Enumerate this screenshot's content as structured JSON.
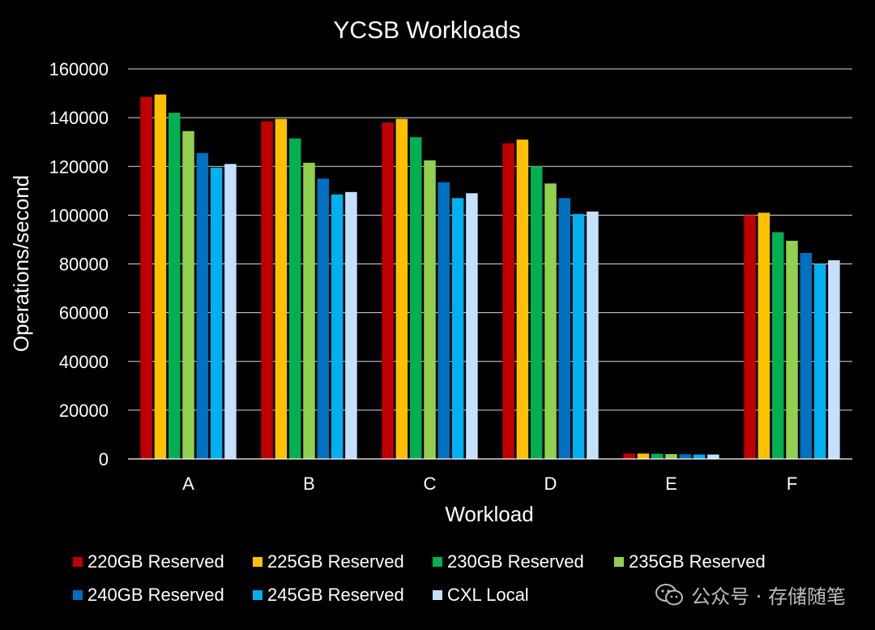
{
  "chart_data": {
    "type": "bar",
    "title": "YCSB Workloads",
    "xlabel": "Workload",
    "ylabel": "Operations/second",
    "ylim": [
      0,
      160000
    ],
    "yticks": [
      0,
      20000,
      40000,
      60000,
      80000,
      100000,
      120000,
      140000,
      160000
    ],
    "ytick_labels": [
      "0",
      "20000",
      "40000",
      "60000",
      "80000",
      "100000",
      "120000",
      "140000",
      "160000"
    ],
    "grid": true,
    "legend_position": "bottom",
    "categories": [
      "A",
      "B",
      "C",
      "D",
      "E",
      "F"
    ],
    "series": [
      {
        "name": "220GB Reserved",
        "color": "#c00000",
        "values": [
          148500,
          138500,
          138000,
          129500,
          2200,
          100000
        ]
      },
      {
        "name": "225GB Reserved",
        "color": "#ffc000",
        "values": [
          149500,
          139500,
          139500,
          131000,
          2200,
          101000
        ]
      },
      {
        "name": "230GB Reserved",
        "color": "#00b050",
        "values": [
          142000,
          131500,
          132000,
          120000,
          2100,
          93000
        ]
      },
      {
        "name": "235GB Reserved",
        "color": "#92d050",
        "values": [
          134500,
          121500,
          122500,
          113000,
          2000,
          89500
        ]
      },
      {
        "name": "240GB Reserved",
        "color": "#0070c0",
        "values": [
          125500,
          115000,
          113500,
          107000,
          1900,
          84500
        ]
      },
      {
        "name": "245GB Reserved",
        "color": "#00b0f0",
        "values": [
          119500,
          108500,
          107000,
          100500,
          1800,
          80000
        ]
      },
      {
        "name": "CXL Local",
        "color": "#c5e0ff",
        "values": [
          121000,
          109500,
          109000,
          101500,
          1800,
          81500
        ]
      }
    ]
  },
  "watermark": {
    "text": "公众号 · 存储随笔",
    "icon": "wechat-icon"
  }
}
